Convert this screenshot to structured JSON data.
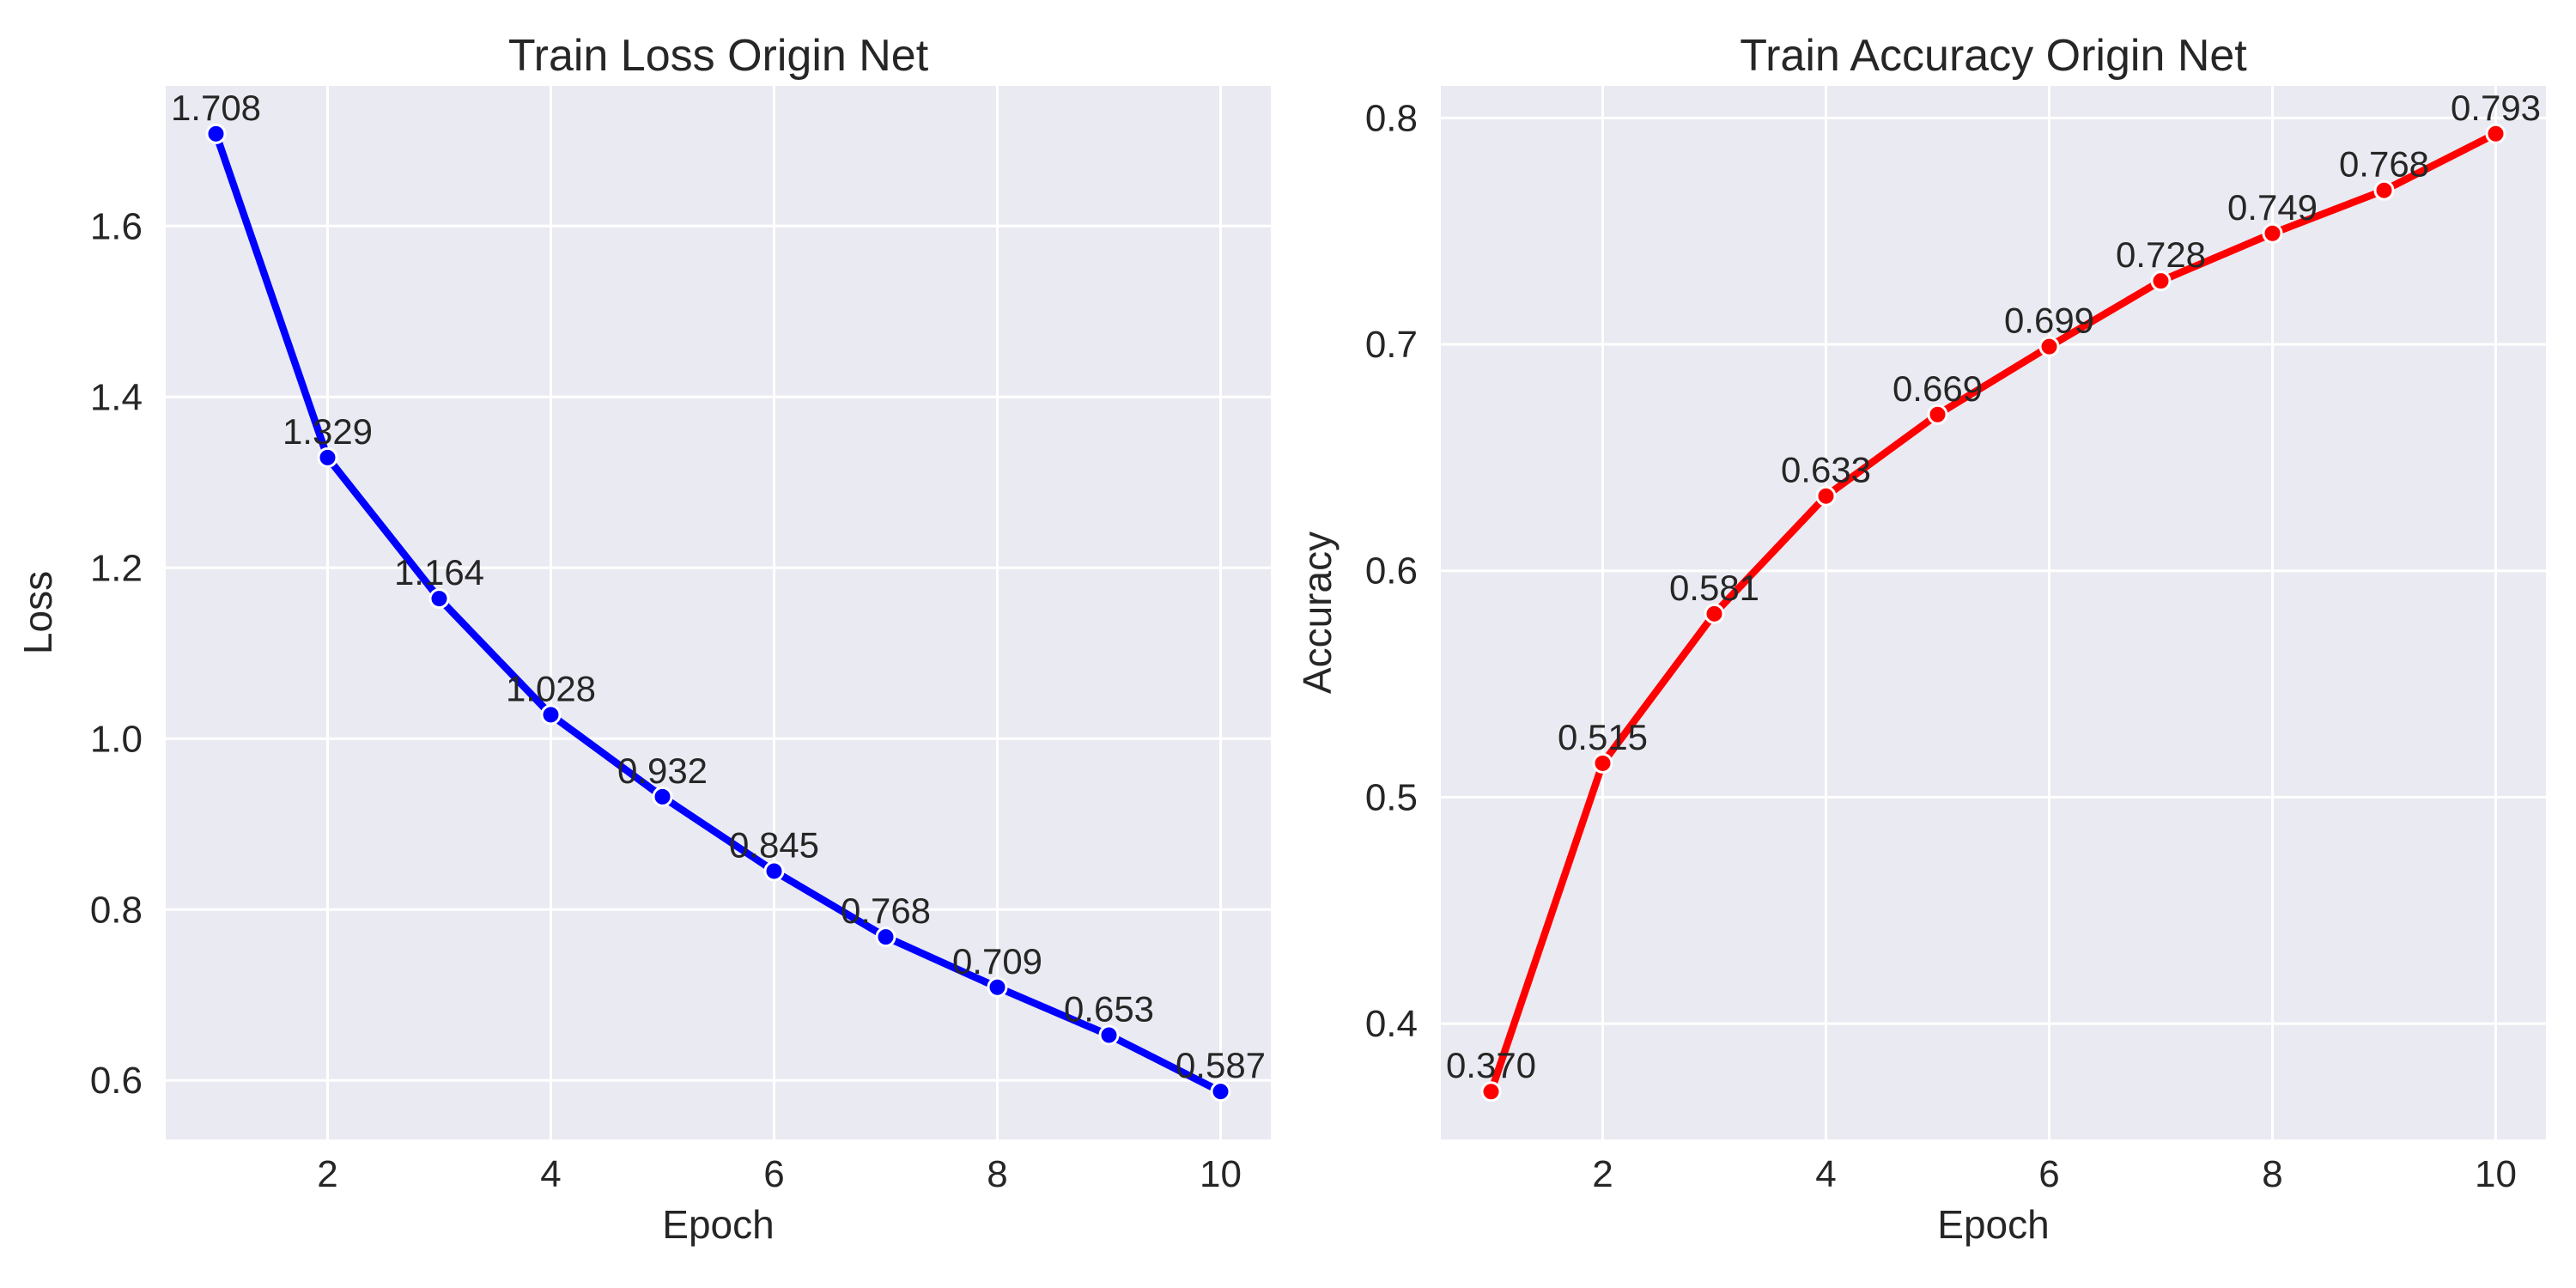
{
  "figure": {
    "background": "#ffffff",
    "plot_background": "#eaeaf2",
    "grid_color": "#ffffff",
    "text_color": "#262626",
    "marker_edge_color": "#ffffff"
  },
  "chart_data": [
    {
      "type": "line",
      "title": "Train Loss Origin Net",
      "xlabel": "Epoch",
      "ylabel": "Loss",
      "x": [
        1,
        2,
        3,
        4,
        5,
        6,
        7,
        8,
        9,
        10
      ],
      "values": [
        1.708,
        1.329,
        1.164,
        1.028,
        0.932,
        0.845,
        0.768,
        0.709,
        0.653,
        0.587
      ],
      "point_labels": [
        "1.708",
        "1.329",
        "1.164",
        "1.028",
        "0.932",
        "0.845",
        "0.768",
        "0.709",
        "0.653",
        "0.587"
      ],
      "line_color": "#0000ff",
      "color_name": "blue",
      "marker": "circle",
      "xlim": [
        0.55,
        10.45
      ],
      "ylim": [
        0.5309,
        1.7641
      ],
      "xticks": [
        2,
        4,
        6,
        8,
        10
      ],
      "xtick_labels": [
        "2",
        "4",
        "6",
        "8",
        "10"
      ],
      "yticks": [
        0.6,
        0.8,
        1.0,
        1.2,
        1.4,
        1.6
      ],
      "ytick_labels": [
        "0.6",
        "0.8",
        "1.0",
        "1.2",
        "1.4",
        "1.6"
      ],
      "grid": true,
      "legend": "none"
    },
    {
      "type": "line",
      "title": "Train Accuracy Origin Net",
      "xlabel": "Epoch",
      "ylabel": "Accuracy",
      "x": [
        1,
        2,
        3,
        4,
        5,
        6,
        7,
        8,
        9,
        10
      ],
      "values": [
        0.37,
        0.515,
        0.581,
        0.633,
        0.669,
        0.699,
        0.728,
        0.749,
        0.768,
        0.793
      ],
      "point_labels": [
        "0.370",
        "0.515",
        "0.581",
        "0.633",
        "0.669",
        "0.699",
        "0.728",
        "0.749",
        "0.768",
        "0.793"
      ],
      "line_color": "#ff0000",
      "color_name": "red",
      "marker": "circle",
      "xlim": [
        0.55,
        10.45
      ],
      "ylim": [
        0.34885,
        0.81415
      ],
      "xticks": [
        2,
        4,
        6,
        8,
        10
      ],
      "xtick_labels": [
        "2",
        "4",
        "6",
        "8",
        "10"
      ],
      "yticks": [
        0.4,
        0.5,
        0.6,
        0.7,
        0.8
      ],
      "ytick_labels": [
        "0.4",
        "0.5",
        "0.6",
        "0.7",
        "0.8"
      ],
      "grid": true,
      "legend": "none"
    }
  ]
}
